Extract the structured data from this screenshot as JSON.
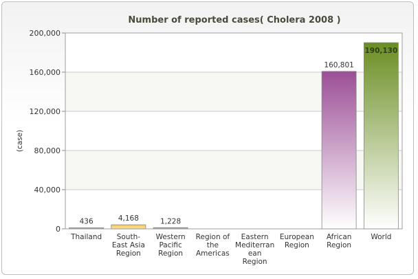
{
  "chart_data": {
    "type": "bar",
    "title": "Number of reported cases( Cholera 2008 )",
    "xlabel": "",
    "ylabel": "(case)",
    "ylim": [
      0,
      200000
    ],
    "yticks": [
      0,
      40000,
      80000,
      120000,
      160000,
      200000
    ],
    "ytick_labels": [
      "0",
      "40,000",
      "80,000",
      "120,000",
      "160,000",
      "200,000"
    ],
    "grid": true,
    "legend": "none",
    "categories": [
      [
        "Thailand"
      ],
      [
        "South-",
        "East Asia",
        "Region"
      ],
      [
        "Western",
        "Pacific",
        "Region"
      ],
      [
        "Region of",
        "the",
        "Americas"
      ],
      [
        "Eastern",
        "Mediterran",
        "ean",
        "Region"
      ],
      [
        "European",
        "Region"
      ],
      [
        "African",
        "Region"
      ],
      [
        "World"
      ]
    ],
    "values": [
      436,
      4168,
      1228,
      null,
      null,
      null,
      160801,
      190130
    ],
    "value_labels": [
      "436",
      "4,168",
      "1,228",
      "",
      "",
      "",
      "160,801",
      "190,130"
    ],
    "colors": [
      "#9a9a9a",
      "#f5c65a",
      "#9a9a9a",
      "#9a9a9a",
      "#9a9a9a",
      "#9a9a9a",
      "#9b4f96",
      "#6b8e23"
    ]
  }
}
